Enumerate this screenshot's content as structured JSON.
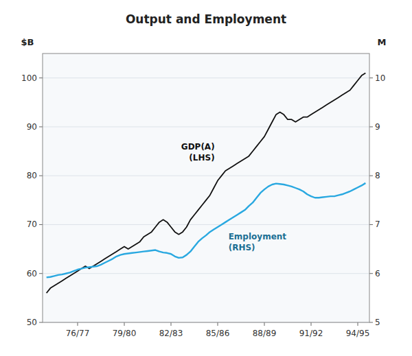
{
  "chart_data": {
    "type": "line",
    "title": "Output and Employment",
    "ylabel": "$B",
    "y2label": "M",
    "x": [
      1974.5,
      1974.75,
      1975.0,
      1975.25,
      1975.5,
      1975.75,
      1976.0,
      1976.25,
      1976.5,
      1976.75,
      1977.0,
      1977.25,
      1977.5,
      1977.75,
      1978.0,
      1978.25,
      1978.5,
      1978.75,
      1979.0,
      1979.25,
      1979.5,
      1979.75,
      1980.0,
      1980.25,
      1980.5,
      1980.75,
      1981.0,
      1981.25,
      1981.5,
      1981.75,
      1982.0,
      1982.25,
      1982.5,
      1982.75,
      1983.0,
      1983.25,
      1983.5,
      1983.75,
      1984.0,
      1984.25,
      1984.5,
      1984.75,
      1985.0,
      1985.25,
      1985.5,
      1985.75,
      1986.0,
      1986.25,
      1986.5,
      1986.75,
      1987.0,
      1987.25,
      1987.5,
      1987.75,
      1988.0,
      1988.25,
      1988.5,
      1988.75,
      1989.0,
      1989.25,
      1989.5,
      1989.75,
      1990.0,
      1990.25,
      1990.5,
      1990.75,
      1991.0,
      1991.25,
      1991.5,
      1991.75,
      1992.0,
      1992.25,
      1992.5,
      1992.75,
      1993.0,
      1993.25,
      1993.5,
      1993.75,
      1994.0,
      1994.25,
      1994.5,
      1994.75,
      1995.0
    ],
    "series": [
      {
        "name": "GDP(A)\n(LHS)",
        "color": "#111111",
        "values": [
          56.0,
          57.0,
          57.5,
          58.0,
          58.5,
          59.0,
          59.5,
          60.0,
          60.5,
          61.0,
          61.5,
          61.0,
          61.5,
          62.0,
          62.5,
          63.0,
          63.5,
          64.0,
          64.5,
          65.0,
          65.5,
          65.0,
          65.5,
          66.0,
          66.5,
          67.5,
          68.0,
          68.5,
          69.5,
          70.5,
          71.0,
          70.5,
          69.5,
          68.5,
          68.0,
          68.5,
          69.5,
          71.0,
          72.0,
          73.0,
          74.0,
          75.0,
          76.0,
          77.5,
          79.0,
          80.0,
          81.0,
          81.5,
          82.0,
          82.5,
          83.0,
          83.5,
          84.0,
          85.0,
          86.0,
          87.0,
          88.0,
          89.5,
          91.0,
          92.5,
          93.0,
          92.5,
          91.5,
          91.5,
          91.0,
          91.5,
          92.0,
          92.0,
          92.5,
          93.0,
          93.5,
          94.0,
          94.5,
          95.0,
          95.5,
          96.0,
          96.5,
          97.0,
          97.5,
          98.5,
          99.5,
          100.5,
          101.0
        ]
      },
      {
        "name": "Employment\n(RHS)",
        "color": "#29a8e0",
        "axis": "y2",
        "values": [
          5.92,
          5.93,
          5.95,
          5.97,
          5.98,
          6.0,
          6.02,
          6.05,
          6.08,
          6.1,
          6.12,
          6.13,
          6.14,
          6.15,
          6.18,
          6.22,
          6.26,
          6.3,
          6.35,
          6.38,
          6.4,
          6.41,
          6.42,
          6.43,
          6.44,
          6.45,
          6.46,
          6.47,
          6.48,
          6.45,
          6.43,
          6.42,
          6.4,
          6.35,
          6.32,
          6.33,
          6.38,
          6.45,
          6.55,
          6.65,
          6.72,
          6.78,
          6.85,
          6.9,
          6.95,
          7.0,
          7.05,
          7.1,
          7.15,
          7.2,
          7.25,
          7.3,
          7.38,
          7.45,
          7.55,
          7.65,
          7.72,
          7.78,
          7.82,
          7.84,
          7.83,
          7.82,
          7.8,
          7.78,
          7.75,
          7.72,
          7.68,
          7.62,
          7.58,
          7.55,
          7.55,
          7.56,
          7.57,
          7.58,
          7.58,
          7.6,
          7.62,
          7.65,
          7.68,
          7.72,
          7.76,
          7.8,
          7.85
        ]
      }
    ],
    "xlim": [
      1974.25,
      1995.25
    ],
    "xticks": [
      {
        "value": 1976.5,
        "label": "76/77"
      },
      {
        "value": 1979.5,
        "label": "79/80"
      },
      {
        "value": 1982.5,
        "label": "82/83"
      },
      {
        "value": 1985.5,
        "label": "85/86"
      },
      {
        "value": 1988.5,
        "label": "88/89"
      },
      {
        "value": 1991.5,
        "label": "91/92"
      },
      {
        "value": 1994.5,
        "label": "94/95"
      }
    ],
    "ylim": [
      50,
      105
    ],
    "yticks": [
      50,
      60,
      70,
      80,
      90,
      100
    ],
    "y2lim": [
      5,
      10.5
    ],
    "y2ticks": [
      5,
      6,
      7,
      8,
      9,
      10
    ],
    "grid": true
  }
}
